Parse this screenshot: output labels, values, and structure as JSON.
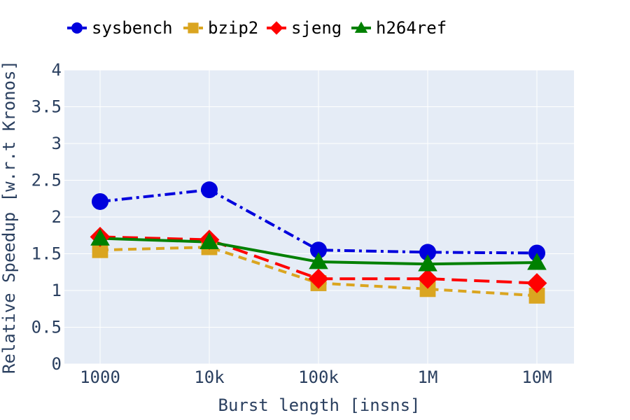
{
  "chart_data": {
    "type": "line",
    "title": "",
    "xlabel": "Burst length [insns]",
    "ylabel": "Relative Speedup [w.r.t Kronos]",
    "categories": [
      "1000",
      "10k",
      "100k",
      "1M",
      "10M"
    ],
    "ylim": [
      0,
      4
    ],
    "yticks": [
      "0",
      "0.5",
      "1",
      "1.5",
      "2",
      "2.5",
      "3",
      "3.5",
      "4"
    ],
    "grid": true,
    "legend_position": "top-left, horizontal",
    "series": [
      {
        "name": "sysbench",
        "values": [
          2.21,
          2.37,
          1.55,
          1.52,
          1.51
        ],
        "color": "#0000dd",
        "dash": "dashdot",
        "marker": "circle"
      },
      {
        "name": "bzip2",
        "values": [
          1.55,
          1.59,
          1.1,
          1.02,
          0.93
        ],
        "color": "#daa520",
        "dash": "dash",
        "marker": "square"
      },
      {
        "name": "sjeng",
        "values": [
          1.73,
          1.69,
          1.16,
          1.16,
          1.1
        ],
        "color": "#ff0000",
        "dash": "longdash",
        "marker": "diamond"
      },
      {
        "name": "h264ref",
        "values": [
          1.71,
          1.66,
          1.39,
          1.36,
          1.38
        ],
        "color": "#008000",
        "dash": "solid",
        "marker": "triangle"
      }
    ]
  }
}
